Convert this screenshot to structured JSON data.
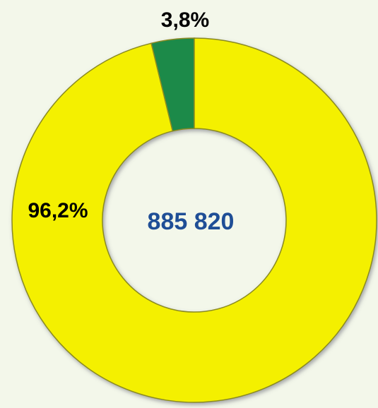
{
  "chart_data": {
    "type": "donut",
    "values": [
      3.8,
      96.2
    ],
    "value_labels": [
      "3,8%",
      "96,2%"
    ],
    "colors": [
      "#1e8a4a",
      "#f4f000"
    ],
    "direction": "counterclockwise",
    "center_label": "885 820"
  }
}
